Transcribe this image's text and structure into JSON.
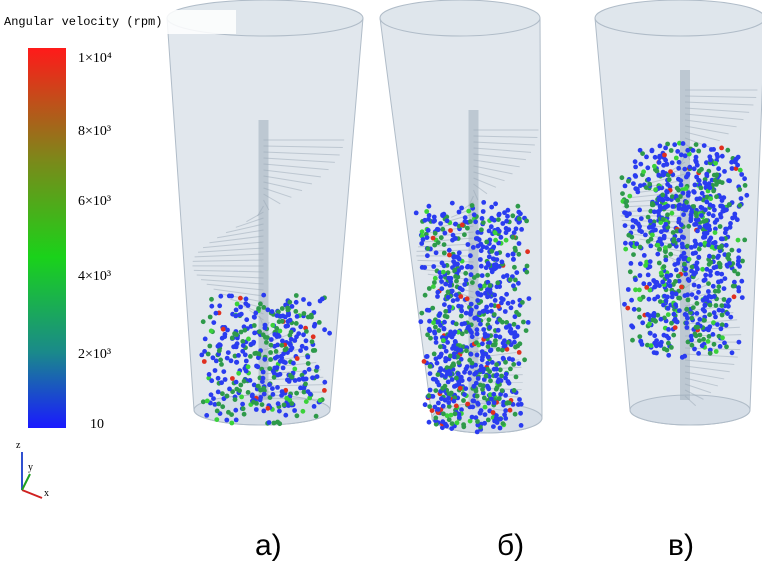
{
  "colorbar": {
    "title": "Angular velocity (rpm)",
    "labels": [
      "1×10⁴",
      "8×10³",
      "6×10³",
      "4×10³",
      "2×10³",
      "10"
    ]
  },
  "axes": {
    "z": "z",
    "y": "y",
    "x": "x"
  },
  "panels": [
    "а)",
    "б)",
    "в)"
  ]
}
